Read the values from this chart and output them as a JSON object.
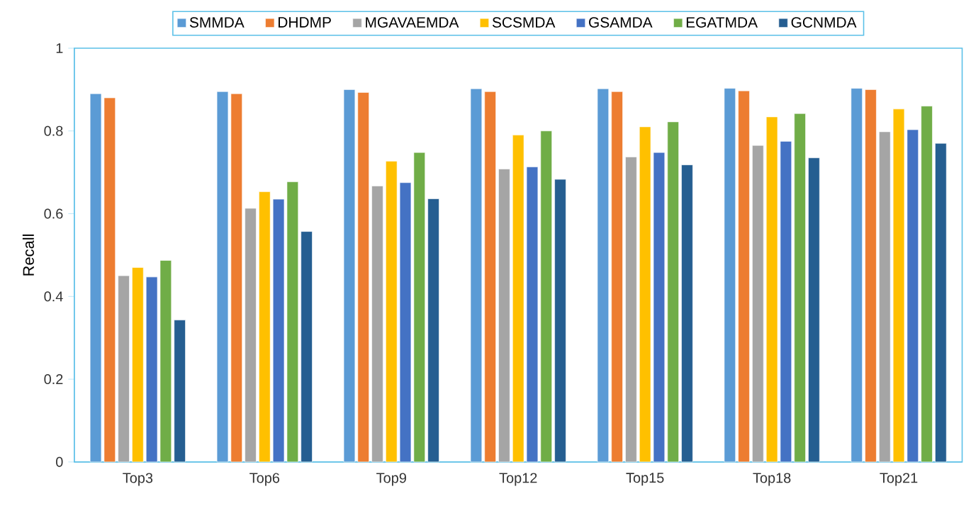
{
  "chart_data": {
    "type": "bar",
    "ylabel": "Recall",
    "categories": [
      "Top3",
      "Top6",
      "Top9",
      "Top12",
      "Top15",
      "Top18",
      "Top21"
    ],
    "series": [
      {
        "name": "SMMDA",
        "color": "#5b9bd5",
        "values": [
          0.89,
          0.895,
          0.9,
          0.902,
          0.902,
          0.903,
          0.903
        ]
      },
      {
        "name": "DHDMP",
        "color": "#ed7d31",
        "values": [
          0.88,
          0.89,
          0.893,
          0.895,
          0.895,
          0.897,
          0.9
        ]
      },
      {
        "name": "MGAVAEMDA",
        "color": "#a5a5a5",
        "values": [
          0.45,
          0.613,
          0.667,
          0.708,
          0.737,
          0.765,
          0.798
        ]
      },
      {
        "name": "SCSMDA",
        "color": "#ffc000",
        "values": [
          0.47,
          0.653,
          0.727,
          0.79,
          0.81,
          0.834,
          0.853
        ]
      },
      {
        "name": "GSAMDA",
        "color": "#4472c4",
        "values": [
          0.447,
          0.635,
          0.675,
          0.713,
          0.748,
          0.775,
          0.803
        ]
      },
      {
        "name": "EGATMDA",
        "color": "#70ad47",
        "values": [
          0.487,
          0.677,
          0.748,
          0.8,
          0.822,
          0.842,
          0.86
        ]
      },
      {
        "name": "GCNMDA",
        "color": "#255e91",
        "values": [
          0.343,
          0.557,
          0.636,
          0.683,
          0.718,
          0.735,
          0.77
        ]
      }
    ],
    "ylim": [
      0,
      1
    ],
    "yticks": [
      0,
      0.2,
      0.4,
      0.6,
      0.8,
      1
    ],
    "grid": false,
    "legend": "top"
  }
}
